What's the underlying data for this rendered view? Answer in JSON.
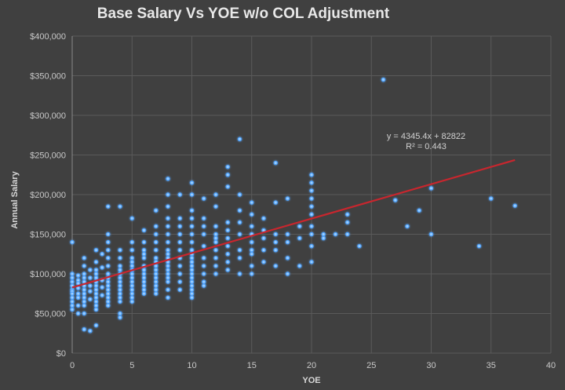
{
  "chart_data": {
    "type": "scatter",
    "title": "Base Salary Vs YOE w/o COL Adjustment",
    "xlabel": "YOE",
    "ylabel": "Annual Salary",
    "xlim": [
      0,
      40
    ],
    "ylim": [
      0,
      400000
    ],
    "x_ticks": [
      "0",
      "5",
      "10",
      "15",
      "20",
      "25",
      "30",
      "35",
      "40"
    ],
    "y_ticks": [
      "$0",
      "$50,000",
      "$100,000",
      "$150,000",
      "$200,000",
      "$250,000",
      "$300,000",
      "$350,000",
      "$400,000"
    ],
    "grid": true,
    "colors": {
      "points": "#4da3ff",
      "trendline": "#c8262e",
      "background": "#404040",
      "grid": "#5a5a5a"
    },
    "trendline": {
      "type": "linear",
      "slope": 4345.4,
      "intercept": 82822,
      "x_range": [
        0,
        37
      ],
      "equation": "y = 4345.4x + 82822",
      "r_squared": "R² = 0.443"
    },
    "columns": [
      {
        "x": 0,
        "y": [
          140000,
          100000,
          95000,
          90000,
          85000,
          80000,
          78000,
          75000,
          70000,
          65000,
          60000,
          55000
        ]
      },
      {
        "x": 0.5,
        "y": [
          98000,
          92000,
          88000,
          82000,
          75000,
          70000,
          60000,
          50000
        ]
      },
      {
        "x": 1,
        "y": [
          120000,
          110000,
          100000,
          95000,
          90000,
          85000,
          80000,
          75000,
          70000,
          65000,
          60000,
          50000,
          30000
        ]
      },
      {
        "x": 1.5,
        "y": [
          105000,
          95000,
          85000,
          78000,
          68000,
          28000
        ]
      },
      {
        "x": 2,
        "y": [
          130000,
          115000,
          105000,
          100000,
          95000,
          90000,
          85000,
          80000,
          75000,
          70000,
          65000,
          60000,
          55000,
          35000
        ]
      },
      {
        "x": 2.5,
        "y": [
          125000,
          108000,
          92000,
          83000,
          73000
        ]
      },
      {
        "x": 3,
        "y": [
          185000,
          150000,
          140000,
          130000,
          120000,
          110000,
          100000,
          95000,
          90000,
          85000,
          80000,
          75000,
          70000,
          65000,
          60000
        ]
      },
      {
        "x": 4,
        "y": [
          185000,
          130000,
          120000,
          110000,
          105000,
          100000,
          95000,
          90000,
          85000,
          80000,
          75000,
          70000,
          65000,
          50000,
          45000
        ]
      },
      {
        "x": 5,
        "y": [
          170000,
          140000,
          130000,
          120000,
          115000,
          110000,
          105000,
          100000,
          95000,
          90000,
          85000,
          80000,
          75000,
          70000,
          65000
        ]
      },
      {
        "x": 6,
        "y": [
          155000,
          140000,
          130000,
          125000,
          120000,
          110000,
          105000,
          100000,
          95000,
          90000,
          85000,
          80000,
          75000
        ]
      },
      {
        "x": 7,
        "y": [
          180000,
          160000,
          150000,
          140000,
          130000,
          120000,
          115000,
          110000,
          105000,
          100000,
          95000,
          90000,
          85000,
          80000,
          75000
        ]
      },
      {
        "x": 8,
        "y": [
          220000,
          200000,
          185000,
          170000,
          160000,
          150000,
          140000,
          130000,
          125000,
          120000,
          115000,
          110000,
          105000,
          100000,
          95000,
          90000,
          80000,
          70000
        ]
      },
      {
        "x": 9,
        "y": [
          200000,
          170000,
          160000,
          150000,
          140000,
          130000,
          120000,
          110000,
          100000,
          90000,
          80000
        ]
      },
      {
        "x": 10,
        "y": [
          215000,
          200000,
          180000,
          170000,
          160000,
          150000,
          140000,
          130000,
          125000,
          120000,
          115000,
          110000,
          105000,
          100000,
          95000,
          90000,
          85000,
          80000,
          75000,
          70000
        ]
      },
      {
        "x": 11,
        "y": [
          195000,
          170000,
          160000,
          150000,
          135000,
          120000,
          110000,
          100000,
          90000,
          85000
        ]
      },
      {
        "x": 12,
        "y": [
          200000,
          185000,
          160000,
          150000,
          145000,
          140000,
          130000,
          120000,
          110000,
          100000
        ]
      },
      {
        "x": 13,
        "y": [
          235000,
          225000,
          210000,
          165000,
          155000,
          145000,
          135000,
          125000,
          115000,
          105000
        ]
      },
      {
        "x": 14,
        "y": [
          270000,
          200000,
          180000,
          165000,
          150000,
          130000,
          120000,
          100000
        ]
      },
      {
        "x": 15,
        "y": [
          190000,
          175000,
          160000,
          150000,
          140000,
          130000,
          125000,
          110000,
          100000
        ]
      },
      {
        "x": 16,
        "y": [
          170000,
          155000,
          145000,
          130000,
          115000
        ]
      },
      {
        "x": 17,
        "y": [
          240000,
          190000,
          150000,
          140000,
          130000,
          110000
        ]
      },
      {
        "x": 18,
        "y": [
          195000,
          150000,
          140000,
          120000,
          100000
        ]
      },
      {
        "x": 19,
        "y": [
          160000,
          145000,
          110000
        ]
      },
      {
        "x": 20,
        "y": [
          225000,
          215000,
          205000,
          195000,
          185000,
          175000,
          160000,
          150000,
          135000,
          115000
        ]
      },
      {
        "x": 21,
        "y": [
          150000,
          145000
        ]
      },
      {
        "x": 22,
        "y": [
          150000
        ]
      },
      {
        "x": 23,
        "y": [
          175000,
          165000,
          150000
        ]
      },
      {
        "x": 24,
        "y": [
          135000
        ]
      },
      {
        "x": 26,
        "y": [
          345000
        ]
      },
      {
        "x": 27,
        "y": [
          193000
        ]
      },
      {
        "x": 28,
        "y": [
          160000
        ]
      },
      {
        "x": 29,
        "y": [
          180000
        ]
      },
      {
        "x": 30,
        "y": [
          208000,
          150000
        ]
      },
      {
        "x": 34,
        "y": [
          135000
        ]
      },
      {
        "x": 35,
        "y": [
          195000
        ]
      },
      {
        "x": 37,
        "y": [
          186000
        ]
      }
    ]
  }
}
